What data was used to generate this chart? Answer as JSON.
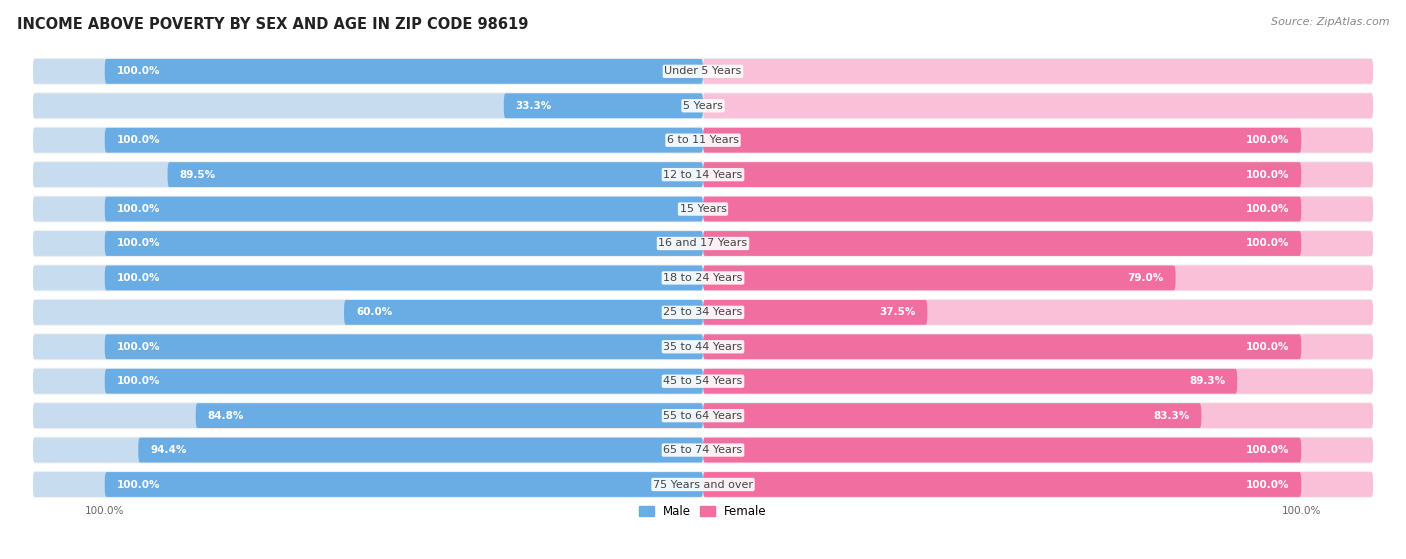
{
  "title": "INCOME ABOVE POVERTY BY SEX AND AGE IN ZIP CODE 98619",
  "source": "Source: ZipAtlas.com",
  "categories": [
    "Under 5 Years",
    "5 Years",
    "6 to 11 Years",
    "12 to 14 Years",
    "15 Years",
    "16 and 17 Years",
    "18 to 24 Years",
    "25 to 34 Years",
    "35 to 44 Years",
    "45 to 54 Years",
    "55 to 64 Years",
    "65 to 74 Years",
    "75 Years and over"
  ],
  "male_values": [
    100.0,
    33.3,
    100.0,
    89.5,
    100.0,
    100.0,
    100.0,
    60.0,
    100.0,
    100.0,
    84.8,
    94.4,
    100.0
  ],
  "female_values": [
    0.0,
    0.0,
    100.0,
    100.0,
    100.0,
    100.0,
    79.0,
    37.5,
    100.0,
    89.3,
    83.3,
    100.0,
    100.0
  ],
  "male_color": "#6aace4",
  "male_bg_color": "#c8dcf0",
  "female_color": "#f06fa0",
  "female_bg_color": "#f9c0d8",
  "male_label": "Male",
  "female_label": "Female",
  "row_bg_color": "#efefef",
  "title_fontsize": 10.5,
  "label_fontsize": 8.0,
  "value_fontsize": 7.5,
  "tick_fontsize": 7.5,
  "source_fontsize": 8
}
